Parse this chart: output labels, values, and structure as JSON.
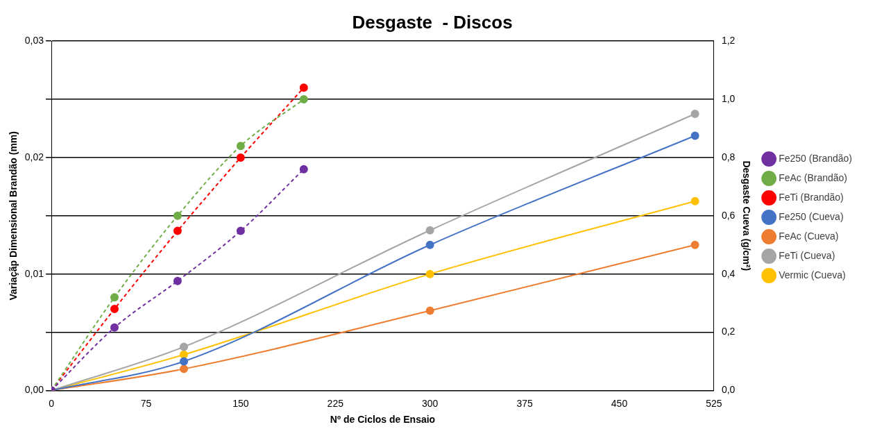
{
  "chart_data": {
    "type": "line",
    "title": "Desgaste  - Discos",
    "xlabel": "Nº de Ciclos de Ensaio",
    "ylabel": "Variaçãp Dimensional Brandão (mm)",
    "y2label": "Desgaste Cueva (g/cm²)",
    "xlim": [
      0,
      525
    ],
    "xticks": [
      0,
      75,
      150,
      225,
      300,
      375,
      450,
      525
    ],
    "ylim": [
      0,
      0.03
    ],
    "yticks": [
      {
        "value": 0,
        "label": "0,00"
      },
      {
        "value": 0.005,
        "label": null
      },
      {
        "value": 0.01,
        "label": "0,01"
      },
      {
        "value": 0.015,
        "label": null
      },
      {
        "value": 0.02,
        "label": "0,02"
      },
      {
        "value": 0.025,
        "label": null
      },
      {
        "value": 0.03,
        "label": "0,03"
      }
    ],
    "y2lim": [
      0,
      1.2
    ],
    "y2ticks": [
      {
        "value": 0,
        "label": "0,0"
      },
      {
        "value": 0.2,
        "label": "0,2"
      },
      {
        "value": 0.4,
        "label": "0,4"
      },
      {
        "value": 0.6,
        "label": "0,6"
      },
      {
        "value": 0.8,
        "label": "0,8"
      },
      {
        "value": 1,
        "label": "1,0"
      },
      {
        "value": 1.2,
        "label": "1,2"
      }
    ],
    "grid": "y",
    "legend": "right",
    "marker": "circle",
    "series": [
      {
        "name": "Fe250 (Brandão)",
        "color": "#7030a0",
        "line_style": "dashed",
        "x": [
          0,
          50,
          100,
          150,
          200
        ],
        "values": [
          0,
          0.0054,
          0.0094,
          0.0137,
          0.019
        ]
      },
      {
        "name": "FeAc (Brandão)",
        "color": "#70ad47",
        "line_style": "dashed",
        "x": [
          0,
          50,
          100,
          150,
          200
        ],
        "values": [
          0,
          0.008,
          0.015,
          0.021,
          0.025
        ]
      },
      {
        "name": "FeTi (Brandão)",
        "color": "#ff0000",
        "line_style": "dashed",
        "x": [
          0,
          50,
          100,
          150,
          200
        ],
        "values": [
          0,
          0.007,
          0.0137,
          0.02,
          0.026
        ]
      },
      {
        "name": "Fe250 (Cueva)",
        "color": "#4472c4",
        "line_style": "solid",
        "axis": "y2",
        "x": [
          0,
          105,
          300,
          510
        ],
        "values": [
          0,
          0.1,
          0.5,
          0.875
        ]
      },
      {
        "name": "FeAc (Cueva)",
        "color": "#ed7d31",
        "line_style": "solid",
        "axis": "y2",
        "x": [
          0,
          105,
          300,
          510
        ],
        "values": [
          0,
          0.074,
          0.274,
          0.5
        ]
      },
      {
        "name": "FeTi (Cueva)",
        "color": "#a5a5a5",
        "line_style": "solid",
        "axis": "y2",
        "x": [
          0,
          105,
          300,
          510
        ],
        "values": [
          0,
          0.15,
          0.55,
          0.95
        ]
      },
      {
        "name": "Vermic (Cueva)",
        "color": "#ffc000",
        "line_style": "solid",
        "axis": "y2",
        "x": [
          0,
          105,
          300,
          510
        ],
        "values": [
          0,
          0.123,
          0.4,
          0.65
        ]
      }
    ]
  }
}
